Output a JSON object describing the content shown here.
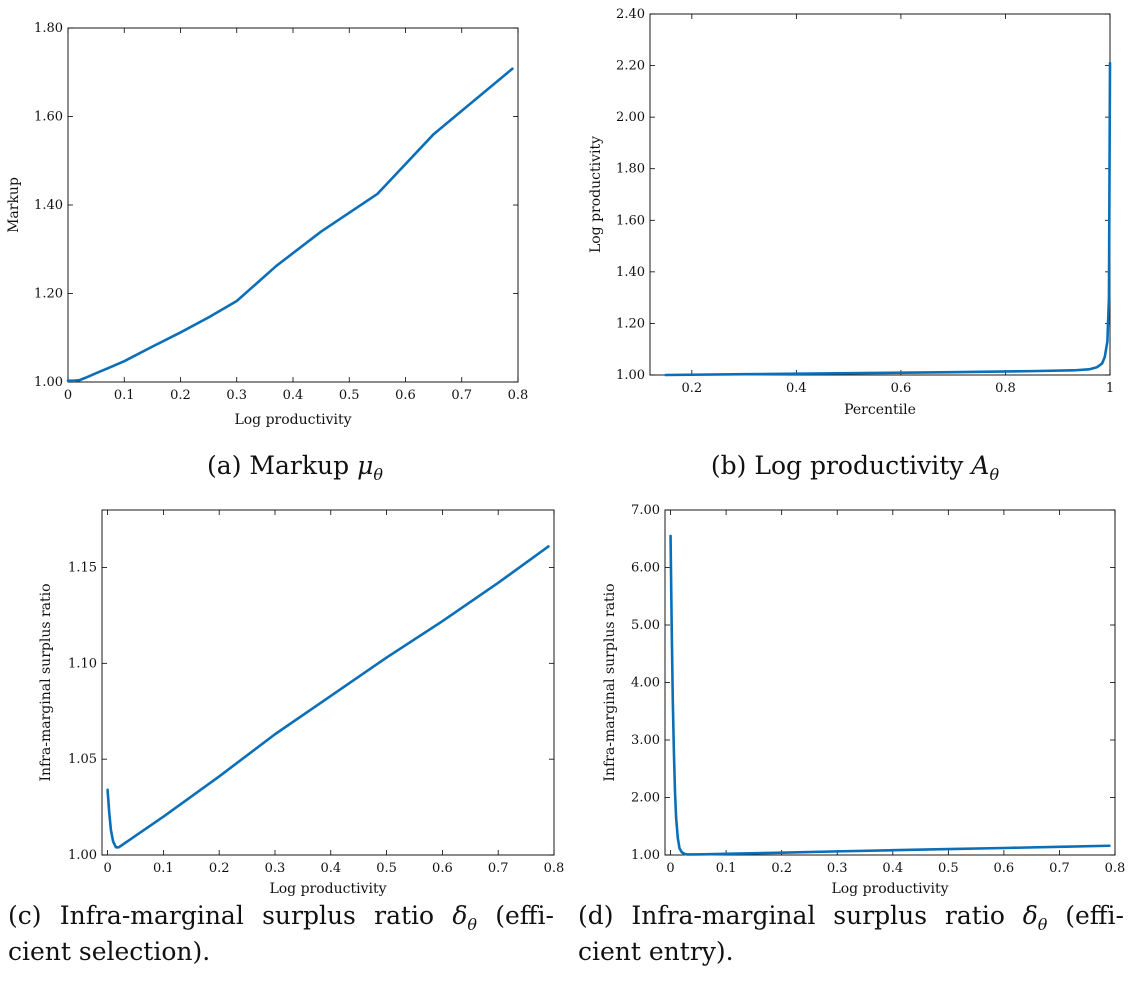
{
  "captions": {
    "a": {
      "text": "(a) Markup ",
      "sym": "μ",
      "sub": "θ"
    },
    "b": {
      "text": "(b) Log productivity ",
      "sym": "A",
      "sub": "θ"
    },
    "c": {
      "line1": "(c) Infra-marginal surplus ratio ",
      "sym": "δ",
      "sub": "θ",
      "line1_end": " (effi-",
      "line2": "cient selection)."
    },
    "d": {
      "line1": "(d) Infra-marginal surplus ratio ",
      "sym": "δ",
      "sub": "θ",
      "line1_end": " (effi-",
      "line2": "cient entry)."
    }
  },
  "chart_data": [
    {
      "id": "a",
      "type": "line",
      "xlabel": "Log productivity",
      "ylabel": "Markup",
      "xlim": [
        0,
        0.8
      ],
      "ylim": [
        1.0,
        1.8
      ],
      "xticks": [
        0,
        0.1,
        0.2,
        0.3,
        0.4,
        0.5,
        0.6,
        0.7,
        0.8
      ],
      "xtick_labels": [
        "0",
        "0.1",
        "0.2",
        "0.3",
        "0.4",
        "0.5",
        "0.6",
        "0.7",
        "0.8"
      ],
      "yticks": [
        1.0,
        1.2,
        1.4,
        1.6,
        1.8
      ],
      "ytick_labels": [
        "1.00",
        "1.20",
        "1.40",
        "1.60",
        "1.80"
      ],
      "color": "#0b6fb8",
      "series": [
        {
          "x": [
            0,
            0.01,
            0.02,
            0.03,
            0.05,
            0.08,
            0.1,
            0.15,
            0.2,
            0.25,
            0.3,
            0.37,
            0.45,
            0.55,
            0.65,
            0.79
          ],
          "y": [
            1.003,
            1.003,
            1.004,
            1.009,
            1.02,
            1.036,
            1.047,
            1.08,
            1.112,
            1.146,
            1.183,
            1.262,
            1.34,
            1.425,
            1.56,
            1.708
          ]
        }
      ]
    },
    {
      "id": "b",
      "type": "line",
      "xlabel": "Percentile",
      "ylabel": "Log productivity",
      "xlim": [
        0.12,
        1.0
      ],
      "ylim": [
        1.0,
        2.4
      ],
      "xticks": [
        0.2,
        0.4,
        0.6,
        0.8,
        1.0
      ],
      "xtick_labels": [
        "0.2",
        "0.4",
        "0.6",
        "0.8",
        "1"
      ],
      "yticks": [
        1.0,
        1.2,
        1.4,
        1.6,
        1.8,
        2.0,
        2.2,
        2.4
      ],
      "ytick_labels": [
        "1.00",
        "1.20",
        "1.40",
        "1.60",
        "1.80",
        "2.00",
        "2.20",
        "2.40"
      ],
      "color": "#0b6fb8",
      "series": [
        {
          "x": [
            0.15,
            0.3,
            0.5,
            0.7,
            0.85,
            0.93,
            0.96,
            0.975,
            0.985,
            0.99,
            0.995,
            0.998,
            1.0
          ],
          "y": [
            1.0,
            1.003,
            1.007,
            1.011,
            1.015,
            1.018,
            1.022,
            1.03,
            1.045,
            1.07,
            1.13,
            1.3,
            2.21
          ]
        }
      ]
    },
    {
      "id": "c",
      "type": "line",
      "xlabel": "Log productivity",
      "ylabel": "Infra-marginal surplus ratio",
      "xlim": [
        -0.01,
        0.8
      ],
      "ylim": [
        1.0,
        1.18
      ],
      "xticks": [
        0,
        0.1,
        0.2,
        0.3,
        0.4,
        0.5,
        0.6,
        0.7,
        0.8
      ],
      "xtick_labels": [
        "0",
        "0.1",
        "0.2",
        "0.3",
        "0.4",
        "0.5",
        "0.6",
        "0.7",
        "0.8"
      ],
      "yticks": [
        1.0,
        1.05,
        1.1,
        1.15
      ],
      "ytick_labels": [
        "1.00",
        "1.05",
        "1.10",
        "1.15"
      ],
      "color": "#0b6fb8",
      "series": [
        {
          "x": [
            0.0,
            0.003,
            0.006,
            0.01,
            0.015,
            0.02,
            0.03,
            0.05,
            0.1,
            0.2,
            0.3,
            0.4,
            0.5,
            0.6,
            0.7,
            0.79
          ],
          "y": [
            1.034,
            1.022,
            1.013,
            1.007,
            1.004,
            1.004,
            1.006,
            1.01,
            1.02,
            1.041,
            1.063,
            1.083,
            1.103,
            1.122,
            1.142,
            1.161
          ]
        }
      ]
    },
    {
      "id": "d",
      "type": "line",
      "xlabel": "Log productivity",
      "ylabel": "Infra-marginal surplus ratio",
      "xlim": [
        -0.01,
        0.8
      ],
      "ylim": [
        1.0,
        7.0
      ],
      "xticks": [
        0,
        0.1,
        0.2,
        0.3,
        0.4,
        0.5,
        0.6,
        0.7,
        0.8
      ],
      "xtick_labels": [
        "0",
        "0.1",
        "0.2",
        "0.3",
        "0.4",
        "0.5",
        "0.6",
        "0.7",
        "0.8"
      ],
      "yticks": [
        1.0,
        2.0,
        3.0,
        4.0,
        5.0,
        6.0,
        7.0
      ],
      "ytick_labels": [
        "1.00",
        "2.00",
        "3.00",
        "4.00",
        "5.00",
        "6.00",
        "7.00"
      ],
      "color": "#0b6fb8",
      "series": [
        {
          "x": [
            0.0,
            0.002,
            0.004,
            0.006,
            0.008,
            0.01,
            0.013,
            0.016,
            0.02,
            0.025,
            0.03,
            0.04,
            0.06,
            0.1,
            0.2,
            0.3,
            0.4,
            0.5,
            0.6,
            0.7,
            0.79
          ],
          "y": [
            6.55,
            5.0,
            3.7,
            2.8,
            2.1,
            1.65,
            1.3,
            1.12,
            1.05,
            1.02,
            1.01,
            1.01,
            1.012,
            1.02,
            1.041,
            1.063,
            1.083,
            1.103,
            1.122,
            1.142,
            1.161
          ]
        }
      ]
    }
  ]
}
